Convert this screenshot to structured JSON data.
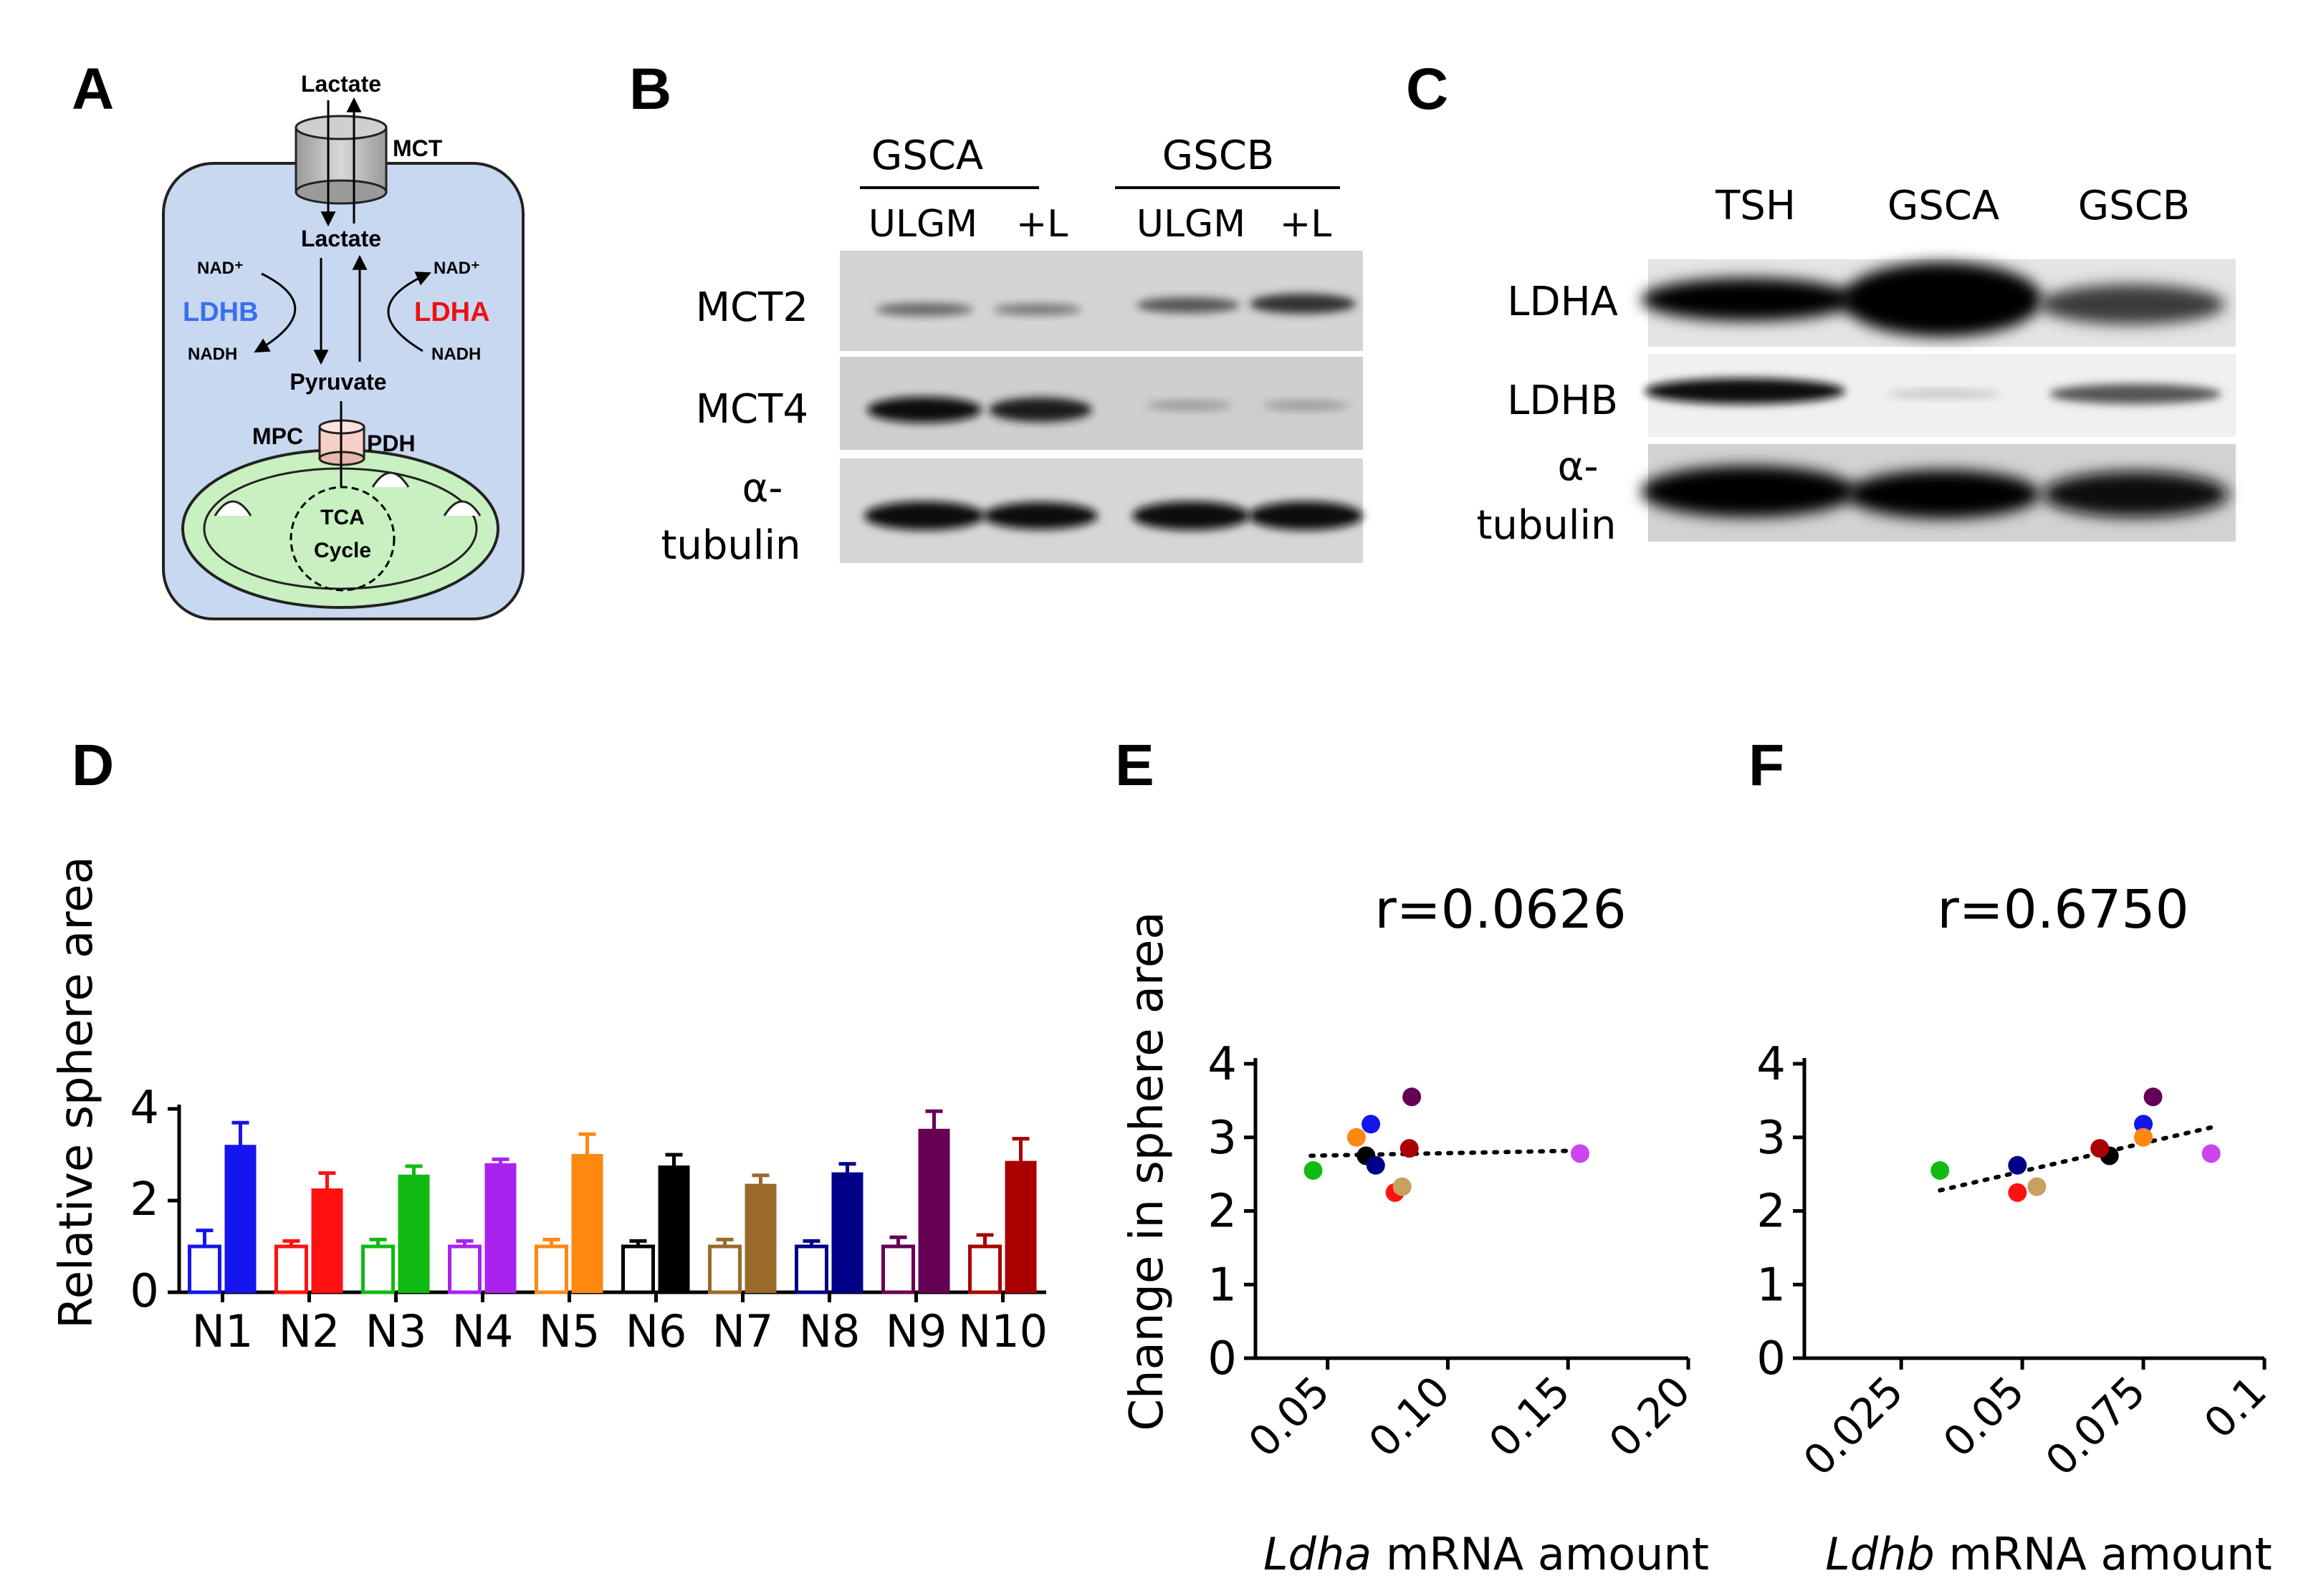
{
  "panels": {
    "A": {
      "letter": "A",
      "lactate_out": "Lactate",
      "mct": "MCT",
      "lactate_in": "Lactate",
      "nad_left": "NAD⁺",
      "nad_right": "NAD⁺",
      "ldhb": "LDHB",
      "ldha": "LDHA",
      "nadh_left": "NADH",
      "nadh_right": "NADH",
      "pyruvate": "Pyruvate",
      "mpc": "MPC",
      "pdh": "PDH",
      "tca_line1": "TCA",
      "tca_line2": "Cycle",
      "colors": {
        "cell": "#c8d8f0",
        "mito": "#c9f0c0",
        "ldhb": "#3a6ff0",
        "ldha": "#ee1111",
        "mpc": "#f6d0c8"
      }
    },
    "B": {
      "letter": "B",
      "groups": [
        "GSCA",
        "GSCB"
      ],
      "lanes": [
        "ULGM",
        "+L",
        "ULGM",
        "+L"
      ],
      "rows": [
        "MCT2",
        "MCT4"
      ],
      "tubulin_line1": "α-",
      "tubulin_line2": "tubulin"
    },
    "C": {
      "letter": "C",
      "lanes": [
        "TSH",
        "GSCA",
        "GSCB"
      ],
      "rows": [
        "LDHA",
        "LDHB"
      ],
      "tubulin_line1": "α-",
      "tubulin_line2": "tubulin"
    },
    "D": {
      "letter": "D"
    },
    "E": {
      "letter": "E"
    },
    "F": {
      "letter": "F"
    }
  },
  "chart_data": [
    {
      "panel": "D",
      "type": "bar",
      "ylabel": "Relative sphere area",
      "xlabel": "",
      "ylim": [
        0,
        4
      ],
      "yticks": [
        "0",
        "2",
        "4"
      ],
      "categories": [
        "N1",
        "N2",
        "N3",
        "N4",
        "N5",
        "N6",
        "N7",
        "N8",
        "N9",
        "N10"
      ],
      "colors": [
        "#1515ee",
        "#ff1111",
        "#11bb11",
        "#aa22ee",
        "#ff8811",
        "#000000",
        "#9a6a2a",
        "#000088",
        "#660055",
        "#aa0000"
      ],
      "series": [
        {
          "values": [
            1.0,
            1.0,
            1.0,
            1.0,
            1.0,
            1.0,
            1.0,
            1.0,
            1.0,
            1.0
          ],
          "errors": [
            0.35,
            0.12,
            0.15,
            0.12,
            0.15,
            0.12,
            0.15,
            0.12,
            0.2,
            0.25
          ],
          "fill": "open"
        },
        {
          "values": [
            3.2,
            2.25,
            2.55,
            2.8,
            3.0,
            2.75,
            2.35,
            2.6,
            3.55,
            2.85
          ],
          "errors": [
            0.5,
            0.35,
            0.2,
            0.1,
            0.45,
            0.25,
            0.2,
            0.2,
            0.4,
            0.5
          ],
          "fill": "solid"
        }
      ]
    },
    {
      "panel": "E",
      "type": "scatter",
      "title": "r=0.0626",
      "ylabel": "Change in sphere area",
      "xlabel_italic": "Ldha",
      "xlabel_rest": " mRNA amount",
      "xlim": [
        0,
        0.2
      ],
      "ylim": [
        0,
        4
      ],
      "xticks": [
        "0.05",
        "0.10",
        "0.15",
        "0.20"
      ],
      "xtick_values": [
        0.05,
        0.1,
        0.15,
        0.2
      ],
      "yticks": [
        "0",
        "1",
        "2",
        "3",
        "4"
      ],
      "trend": {
        "x": [
          0.043,
          0.155
        ],
        "y": [
          2.75,
          2.82
        ]
      },
      "points": [
        {
          "x": 0.068,
          "y": 3.18,
          "color": "#1515ee"
        },
        {
          "x": 0.078,
          "y": 2.25,
          "color": "#ff1111"
        },
        {
          "x": 0.044,
          "y": 2.55,
          "color": "#11bb11"
        },
        {
          "x": 0.155,
          "y": 2.78,
          "color": "#cc44ee"
        },
        {
          "x": 0.062,
          "y": 3.0,
          "color": "#ff8811"
        },
        {
          "x": 0.066,
          "y": 2.75,
          "color": "#000000"
        },
        {
          "x": 0.081,
          "y": 2.33,
          "color": "#c8a060"
        },
        {
          "x": 0.07,
          "y": 2.62,
          "color": "#000088"
        },
        {
          "x": 0.085,
          "y": 3.55,
          "color": "#660055"
        },
        {
          "x": 0.084,
          "y": 2.85,
          "color": "#aa0000"
        }
      ]
    },
    {
      "panel": "F",
      "type": "scatter",
      "title": "r=0.6750",
      "ylabel": "",
      "xlabel_italic": "Ldhb",
      "xlabel_rest": " mRNA amount",
      "xlim": [
        0,
        0.1
      ],
      "ylim": [
        0,
        4
      ],
      "xticks": [
        "0.025",
        "0.05",
        "0.075",
        "0.1"
      ],
      "xtick_values": [
        0.025,
        0.05,
        0.075,
        0.1
      ],
      "yticks": [
        "0",
        "1",
        "2",
        "3",
        "4"
      ],
      "trend": {
        "x": [
          0.033,
          0.09
        ],
        "y": [
          2.28,
          3.15
        ]
      },
      "points": [
        {
          "x": 0.075,
          "y": 3.18,
          "color": "#1515ee"
        },
        {
          "x": 0.049,
          "y": 2.25,
          "color": "#ff1111"
        },
        {
          "x": 0.033,
          "y": 2.55,
          "color": "#11bb11"
        },
        {
          "x": 0.089,
          "y": 2.78,
          "color": "#cc44ee"
        },
        {
          "x": 0.075,
          "y": 3.0,
          "color": "#ff8811"
        },
        {
          "x": 0.068,
          "y": 2.75,
          "color": "#000000"
        },
        {
          "x": 0.053,
          "y": 2.33,
          "color": "#c8a060"
        },
        {
          "x": 0.049,
          "y": 2.62,
          "color": "#000088"
        },
        {
          "x": 0.077,
          "y": 3.55,
          "color": "#660055"
        },
        {
          "x": 0.066,
          "y": 2.85,
          "color": "#aa0000"
        }
      ]
    }
  ]
}
